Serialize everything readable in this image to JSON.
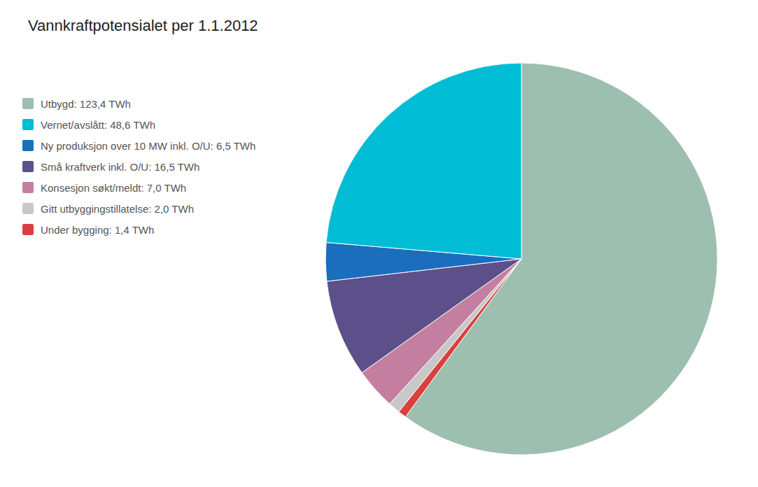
{
  "chart_data": {
    "type": "pie",
    "title": "Vannkraftpotensialet per 1.1.2012",
    "categories": [
      "Utbygd: 123,4 TWh",
      "Under bygging: 1,4 TWh",
      "Gitt utbyggingstillatelse: 2,0 TWh",
      "Konsesjon søkt/meldt: 7,0 TWh",
      "Små kraftverk inkl. O/U: 16,5 TWh",
      "Ny produksjon over 10 MW inkl. O/U: 6,5 TWh",
      "Vernet/avslått: 48,6 TWh"
    ],
    "values": [
      123.4,
      1.4,
      2.0,
      7.0,
      16.5,
      6.5,
      48.6
    ],
    "colors": [
      "#9dbfb0",
      "#d94040",
      "#c8c8c8",
      "#c47fa0",
      "#5c4f8a",
      "#1a6ebd",
      "#00bcd4"
    ],
    "legend": "upper left",
    "legend_order": [
      0,
      6,
      5,
      4,
      3,
      2,
      1
    ]
  }
}
